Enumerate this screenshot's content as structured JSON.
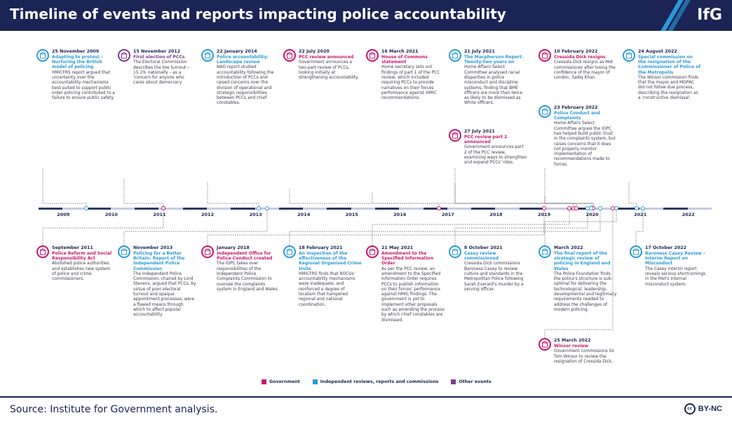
{
  "title": "Timeline of events and reports impacting police accountability",
  "logo": "IfG",
  "source": "Source: Institute for Government analysis.",
  "license": "BY-NC",
  "license_icon": "cc",
  "colors": {
    "government": "#c8176b",
    "independent": "#2b9ad6",
    "other": "#7b3c8e",
    "navy": "#1b2455"
  },
  "years": [
    "2009",
    "2010",
    "2011",
    "2012",
    "2013",
    "2014",
    "2015",
    "2016",
    "2017",
    "2018",
    "2019",
    "2020",
    "2021",
    "2022"
  ],
  "legend": [
    {
      "label": "Government",
      "type": "gov"
    },
    {
      "label": "Independent reviews, reports and commissions",
      "type": "ind"
    },
    {
      "label": "Other events",
      "type": "oth"
    }
  ],
  "events_top": [
    {
      "date": "25 November 2009",
      "title": "Adapting to protest – Nurturing the British model of policing",
      "type": "ind",
      "body": "HMICFRS report argued that uncertainty over the accountability mechanisms best suited to support public order policing contributed to a failure to ensure public safety."
    },
    {
      "date": "15 November 2012",
      "title": "First election of PCCs",
      "type": "oth",
      "body": "The Electoral Commission describes the low turnout – 15.1% nationally – as a 'concern for anyone who cares about democracy"
    },
    {
      "date": "22 January 2014",
      "title": "Police accountability: Landscape review",
      "type": "ind",
      "body": "NAO report studied accountability following the introduction of PCCs and raised concerns over the division of operational and strategic responsibilities between PCCs and chief constables."
    },
    {
      "date": "22 July 2020",
      "title": "PCC review announced",
      "type": "gov",
      "body": "Government announces a two-part review of PCCs, looking initially at strengthening accountability."
    },
    {
      "date": "16 March 2021",
      "title": "House of Commons statement",
      "type": "gov",
      "body": "Home secretary sets out findings of part 1 of the PCC review, which included requiring PCCs to provide narratives on their forces performance against HMIC recommendations."
    },
    {
      "date": "21 July 2021",
      "title": "The Macpherson Report: Twenty-two years on",
      "type": "ind",
      "body": "Home Affairs Select Committee analysed racial disparities in police misconduct and discipline systems, finding that BME officers are more than twice as likely to be dismissed as White officers."
    },
    {
      "date": "27 July 2021",
      "title": "PCC review part 2 announced",
      "type": "gov",
      "body": "Government announces part 2 of the PCC review, examining ways to strengthen and expand PCCs' roles."
    },
    {
      "date": "10 February 2022",
      "title": "Cressida Dick resigns",
      "type": "gov",
      "body": "Cressida Dick resigns as Met commissioner after losing the confidence of the mayor of London, Sadiq Khan."
    },
    {
      "date": "23 February 2022",
      "title": "Police Conduct and Complaints",
      "type": "ind",
      "body": "Home Affairs Select Committee argues the IOPC has helped build public trust in the complaints system, but raises concerns that it does not properly monitor implementation of recommendations made to forces."
    },
    {
      "date": "24 August 2022",
      "title": "Special commission on the resignation of the Commissioner of Police of the Metropolis",
      "type": "ind",
      "body": "The Winsor commission finds that the mayor and MOPAC did not follow due process, describing the resignation as a 'constructive dismissal'."
    }
  ],
  "events_bottom": [
    {
      "date": "September 2011",
      "title": "Police Reform and Social Responsibility Act",
      "type": "gov",
      "body": "Abolished police authorities and establishes new system of police and crime commissioners."
    },
    {
      "date": "November 2013",
      "title": "Policing for a Better Britain: Report of the Independent Police Commission",
      "type": "ind",
      "body": "The Independent Police Commission, chaired by Lord Stevens, argued that PCCs, by virtue of poor electoral turnout and opaque appointment processes, were a flawed means through which to affect popular accountability."
    },
    {
      "date": "January 2018",
      "title": "Independent Office for Police Conduct created",
      "type": "gov",
      "body": "The IOPC takes over responsibilities of the Independent Police Complaints Commission to oversee the complaints system in England and Wales."
    },
    {
      "date": "18 February 2021",
      "title": "An inspection of the effectiveness of the Regional Organised Crime Units",
      "type": "ind",
      "body": "HMICFRS finds that ROCUs' accountability mechanisms were inadequate, and reinforced a degree of localism that hampered regional and national coordination."
    },
    {
      "date": "21 May 2021",
      "title": "Amendment to the Specified Information Order",
      "type": "gov",
      "body": "As per the PCC review, an amendment to the Specified Information Order requires PCCs to publish information on their forces' performance against HMIC findings. The government is yet to implement other proposals such as amending the process by which chief constables are dismissed."
    },
    {
      "date": "8 October 2021",
      "title": "Casey review commissioned",
      "type": "ind",
      "body": "Cressida Dick commissions Baroness Casey to review culture and standards in the Metropolitan Police following Sarah Everard's murder by a serving officer."
    },
    {
      "date": "March 2022",
      "title": "The final report of the strategic review of policing in England and Wales",
      "type": "ind",
      "body": "The Police Foundation finds the police's structure is sub-optimal for delivering the technological, leadership, developmental and legitimacy requirements needed to address the challenges of modern policing."
    },
    {
      "date": "25 March 2022",
      "title": "Winsor review",
      "type": "gov",
      "body": "Government commissions Sir Tom Winsor to review the resignation of Cressida Dick."
    },
    {
      "date": "17 October 2022",
      "title": "Baroness Casey Review – Interim Report on Misconduct",
      "type": "ind",
      "body": "The Casey interim report reveals serious shortcomings in the Met's internal misconduct system."
    }
  ]
}
